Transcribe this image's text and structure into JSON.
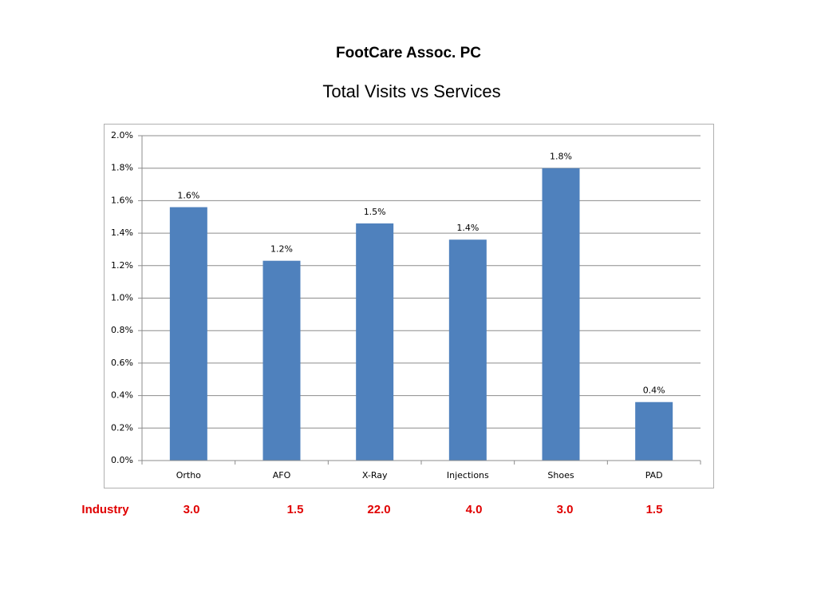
{
  "chart_data": {
    "type": "bar",
    "title": "FootCare Assoc. PC",
    "subtitle": "Total Visits vs Services",
    "categories": [
      "Ortho",
      "AFO",
      "X-Ray",
      "Injections",
      "Shoes",
      "PAD"
    ],
    "values": [
      1.56,
      1.23,
      1.46,
      1.36,
      1.8,
      0.36
    ],
    "value_labels": [
      "1.6%",
      "1.2%",
      "1.5%",
      "1.4%",
      "1.8%",
      "0.4%"
    ],
    "color": "#4f81bd",
    "ylim": [
      0,
      2
    ],
    "yticks": [
      {
        "value": 0,
        "label": "0.0%"
      },
      {
        "value": 0.2,
        "label": "0.2%"
      },
      {
        "value": 0.4,
        "label": "0.4%"
      },
      {
        "value": 0.6,
        "label": "0.6%"
      },
      {
        "value": 0.8,
        "label": "0.8%"
      },
      {
        "value": 1.0,
        "label": "1.0%"
      },
      {
        "value": 1.2,
        "label": "1.2%"
      },
      {
        "value": 1.4,
        "label": "1.4%"
      },
      {
        "value": 1.6,
        "label": "1.6%"
      },
      {
        "value": 1.8,
        "label": "1.8%"
      },
      {
        "value": 2.0,
        "label": "2.0%"
      }
    ],
    "grid": true,
    "industry": {
      "label": "Industry",
      "values": [
        "3.0",
        "1.5",
        "22.0",
        "4.0",
        "3.0",
        "1.5"
      ]
    }
  }
}
